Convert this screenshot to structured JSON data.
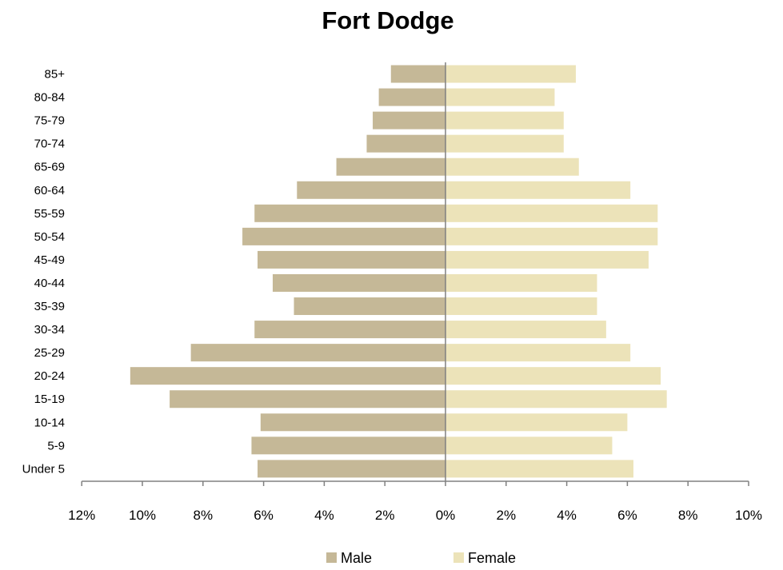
{
  "chart_data": {
    "type": "bar",
    "orientation": "horizontal",
    "layout": "population-pyramid",
    "title": "Fort Dodge",
    "categories": [
      "85+",
      "80-84",
      "75-79",
      "70-74",
      "65-69",
      "60-64",
      "55-59",
      "50-54",
      "45-49",
      "40-44",
      "35-39",
      "30-34",
      "25-29",
      "20-24",
      "15-19",
      "10-14",
      "5-9",
      "Under 5"
    ],
    "series": [
      {
        "name": "Male",
        "color": "#c5b897",
        "values": [
          1.8,
          2.2,
          2.4,
          2.6,
          3.6,
          4.9,
          6.3,
          6.7,
          6.2,
          5.7,
          5.0,
          6.3,
          8.4,
          10.4,
          9.1,
          6.1,
          6.4,
          6.2
        ]
      },
      {
        "name": "Female",
        "color": "#ece3b9",
        "values": [
          4.3,
          3.6,
          3.9,
          3.9,
          4.4,
          6.1,
          7.0,
          7.0,
          6.7,
          5.0,
          5.0,
          5.3,
          6.1,
          7.1,
          7.3,
          6.0,
          5.5,
          6.2
        ]
      }
    ],
    "xaxis": {
      "ticks": [
        "12%",
        "10%",
        "8%",
        "6%",
        "4%",
        "2%",
        "0%",
        "2%",
        "4%",
        "6%",
        "8%",
        "10%"
      ],
      "range_male": [
        12,
        0
      ],
      "range_female": [
        0,
        10
      ]
    },
    "legend": {
      "position": "bottom",
      "entries": [
        "Male",
        "Female"
      ]
    },
    "grid": false
  }
}
